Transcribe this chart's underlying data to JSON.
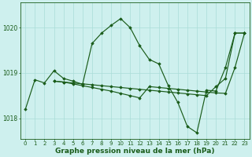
{
  "title": "Graphe pression niveau de la mer (hPa)",
  "bg_color": "#cef0ee",
  "grid_color": "#aaddd8",
  "line_color": "#1a5c1a",
  "ylim": [
    1017.55,
    1020.55
  ],
  "yticks": [
    1018.0,
    1019.0,
    1020.0
  ],
  "series1_x": [
    0,
    1,
    2,
    3,
    4,
    5,
    6,
    7,
    8,
    9,
    10,
    11,
    12,
    13,
    14,
    15,
    16,
    17,
    18,
    19,
    20,
    21,
    22,
    23
  ],
  "series1_y": [
    1018.2,
    1018.85,
    1018.78,
    1019.05,
    1018.88,
    1018.82,
    1018.75,
    1019.65,
    1019.88,
    1020.05,
    1020.2,
    1020.0,
    1019.6,
    1019.3,
    1019.2,
    1018.72,
    1018.35,
    1017.82,
    1017.68,
    1018.62,
    1018.6,
    1019.12,
    1019.88,
    1019.88
  ],
  "series2_x": [
    3,
    4,
    5,
    6,
    7,
    8,
    9,
    10,
    11,
    12,
    13,
    14,
    15,
    16,
    17,
    18,
    19,
    20,
    21,
    22,
    23
  ],
  "series2_y": [
    1018.82,
    1018.8,
    1018.78,
    1018.76,
    1018.74,
    1018.72,
    1018.7,
    1018.68,
    1018.66,
    1018.64,
    1018.62,
    1018.6,
    1018.58,
    1018.56,
    1018.54,
    1018.52,
    1018.5,
    1018.7,
    1018.88,
    1019.88,
    1019.88
  ],
  "series3_x": [
    3,
    4,
    5,
    6,
    7,
    8,
    9,
    10,
    11,
    12,
    13,
    14,
    15,
    16,
    17,
    18,
    19,
    20,
    21,
    22,
    23
  ],
  "series3_y": [
    1018.82,
    1018.8,
    1018.76,
    1018.72,
    1018.68,
    1018.64,
    1018.6,
    1018.55,
    1018.5,
    1018.45,
    1018.7,
    1018.68,
    1018.66,
    1018.64,
    1018.62,
    1018.6,
    1018.58,
    1018.56,
    1018.55,
    1019.12,
    1019.88
  ],
  "tick_fontsize": 5.5,
  "title_fontsize": 6.5
}
